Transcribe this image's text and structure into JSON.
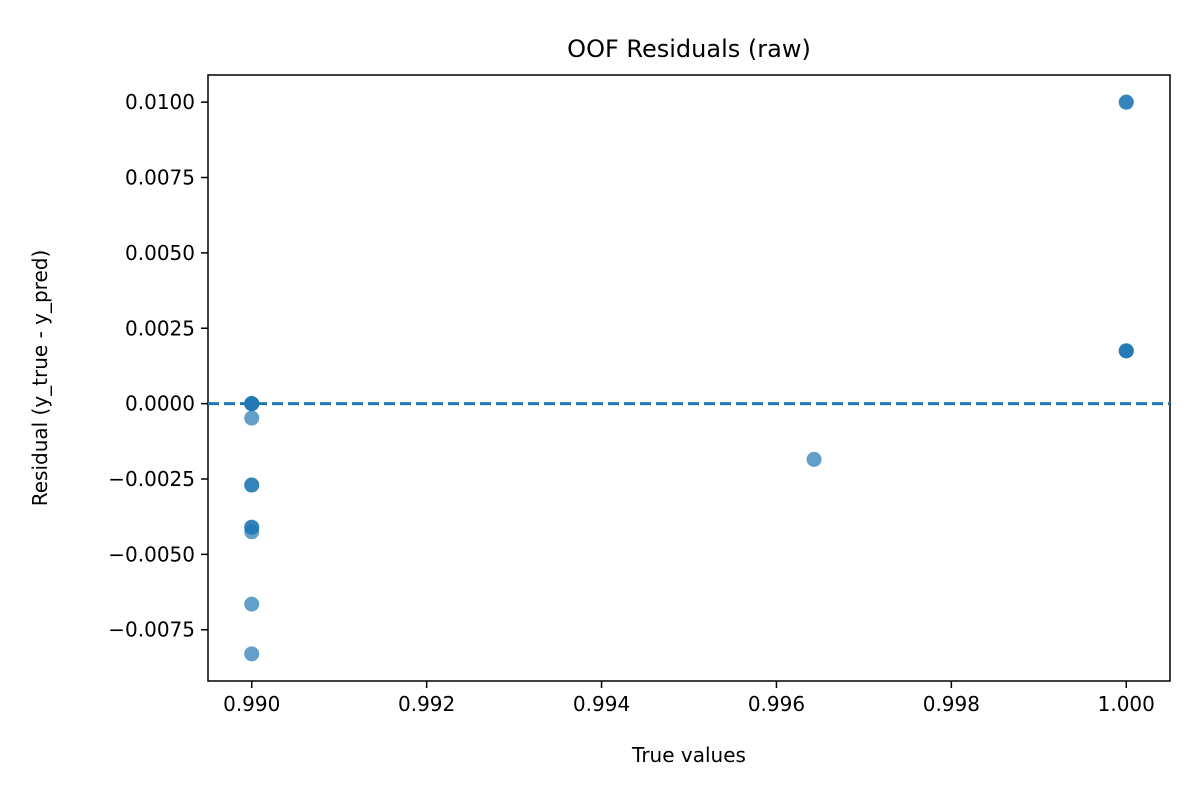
{
  "chart_data": {
    "type": "scatter",
    "title": "OOF Residuals (raw)",
    "xlabel": "True values",
    "ylabel": "Residual (y_true - y_pred)",
    "xlim": [
      0.9895,
      1.0005
    ],
    "ylim": [
      -0.0092,
      0.0109
    ],
    "x_ticks": [
      0.99,
      0.992,
      0.994,
      0.996,
      0.998,
      1.0
    ],
    "x_tick_labels": [
      "0.990",
      "0.992",
      "0.994",
      "0.996",
      "0.998",
      "1.000"
    ],
    "y_ticks": [
      -0.0075,
      -0.005,
      -0.0025,
      0.0,
      0.0025,
      0.005,
      0.0075,
      0.01
    ],
    "y_tick_labels": [
      "−0.0075",
      "−0.0050",
      "−0.0025",
      "0.0000",
      "0.0025",
      "0.0050",
      "0.0075",
      "0.0100"
    ],
    "grid": false,
    "reference_line": {
      "y": 0.0,
      "style": "dashed",
      "color": "#1f77b4"
    },
    "marker_color": "#1f77b4",
    "marker_alpha": 0.7,
    "points": [
      {
        "x": 0.99,
        "y": 0.0
      },
      {
        "x": 0.99,
        "y": 0.0
      },
      {
        "x": 0.99,
        "y": 0.0
      },
      {
        "x": 0.99,
        "y": 0.0
      },
      {
        "x": 0.99,
        "y": -0.00048
      },
      {
        "x": 0.99,
        "y": -0.0027
      },
      {
        "x": 0.99,
        "y": -0.0027
      },
      {
        "x": 0.99,
        "y": -0.0041
      },
      {
        "x": 0.99,
        "y": -0.0041
      },
      {
        "x": 0.99,
        "y": -0.00425
      },
      {
        "x": 0.99,
        "y": -0.00665
      },
      {
        "x": 0.99,
        "y": -0.0083
      },
      {
        "x": 0.99643,
        "y": -0.00185
      },
      {
        "x": 1.0,
        "y": 0.01
      },
      {
        "x": 1.0,
        "y": 0.01
      },
      {
        "x": 1.0,
        "y": 0.00175
      },
      {
        "x": 1.0,
        "y": 0.00175
      },
      {
        "x": 1.0,
        "y": 0.00175
      }
    ]
  }
}
